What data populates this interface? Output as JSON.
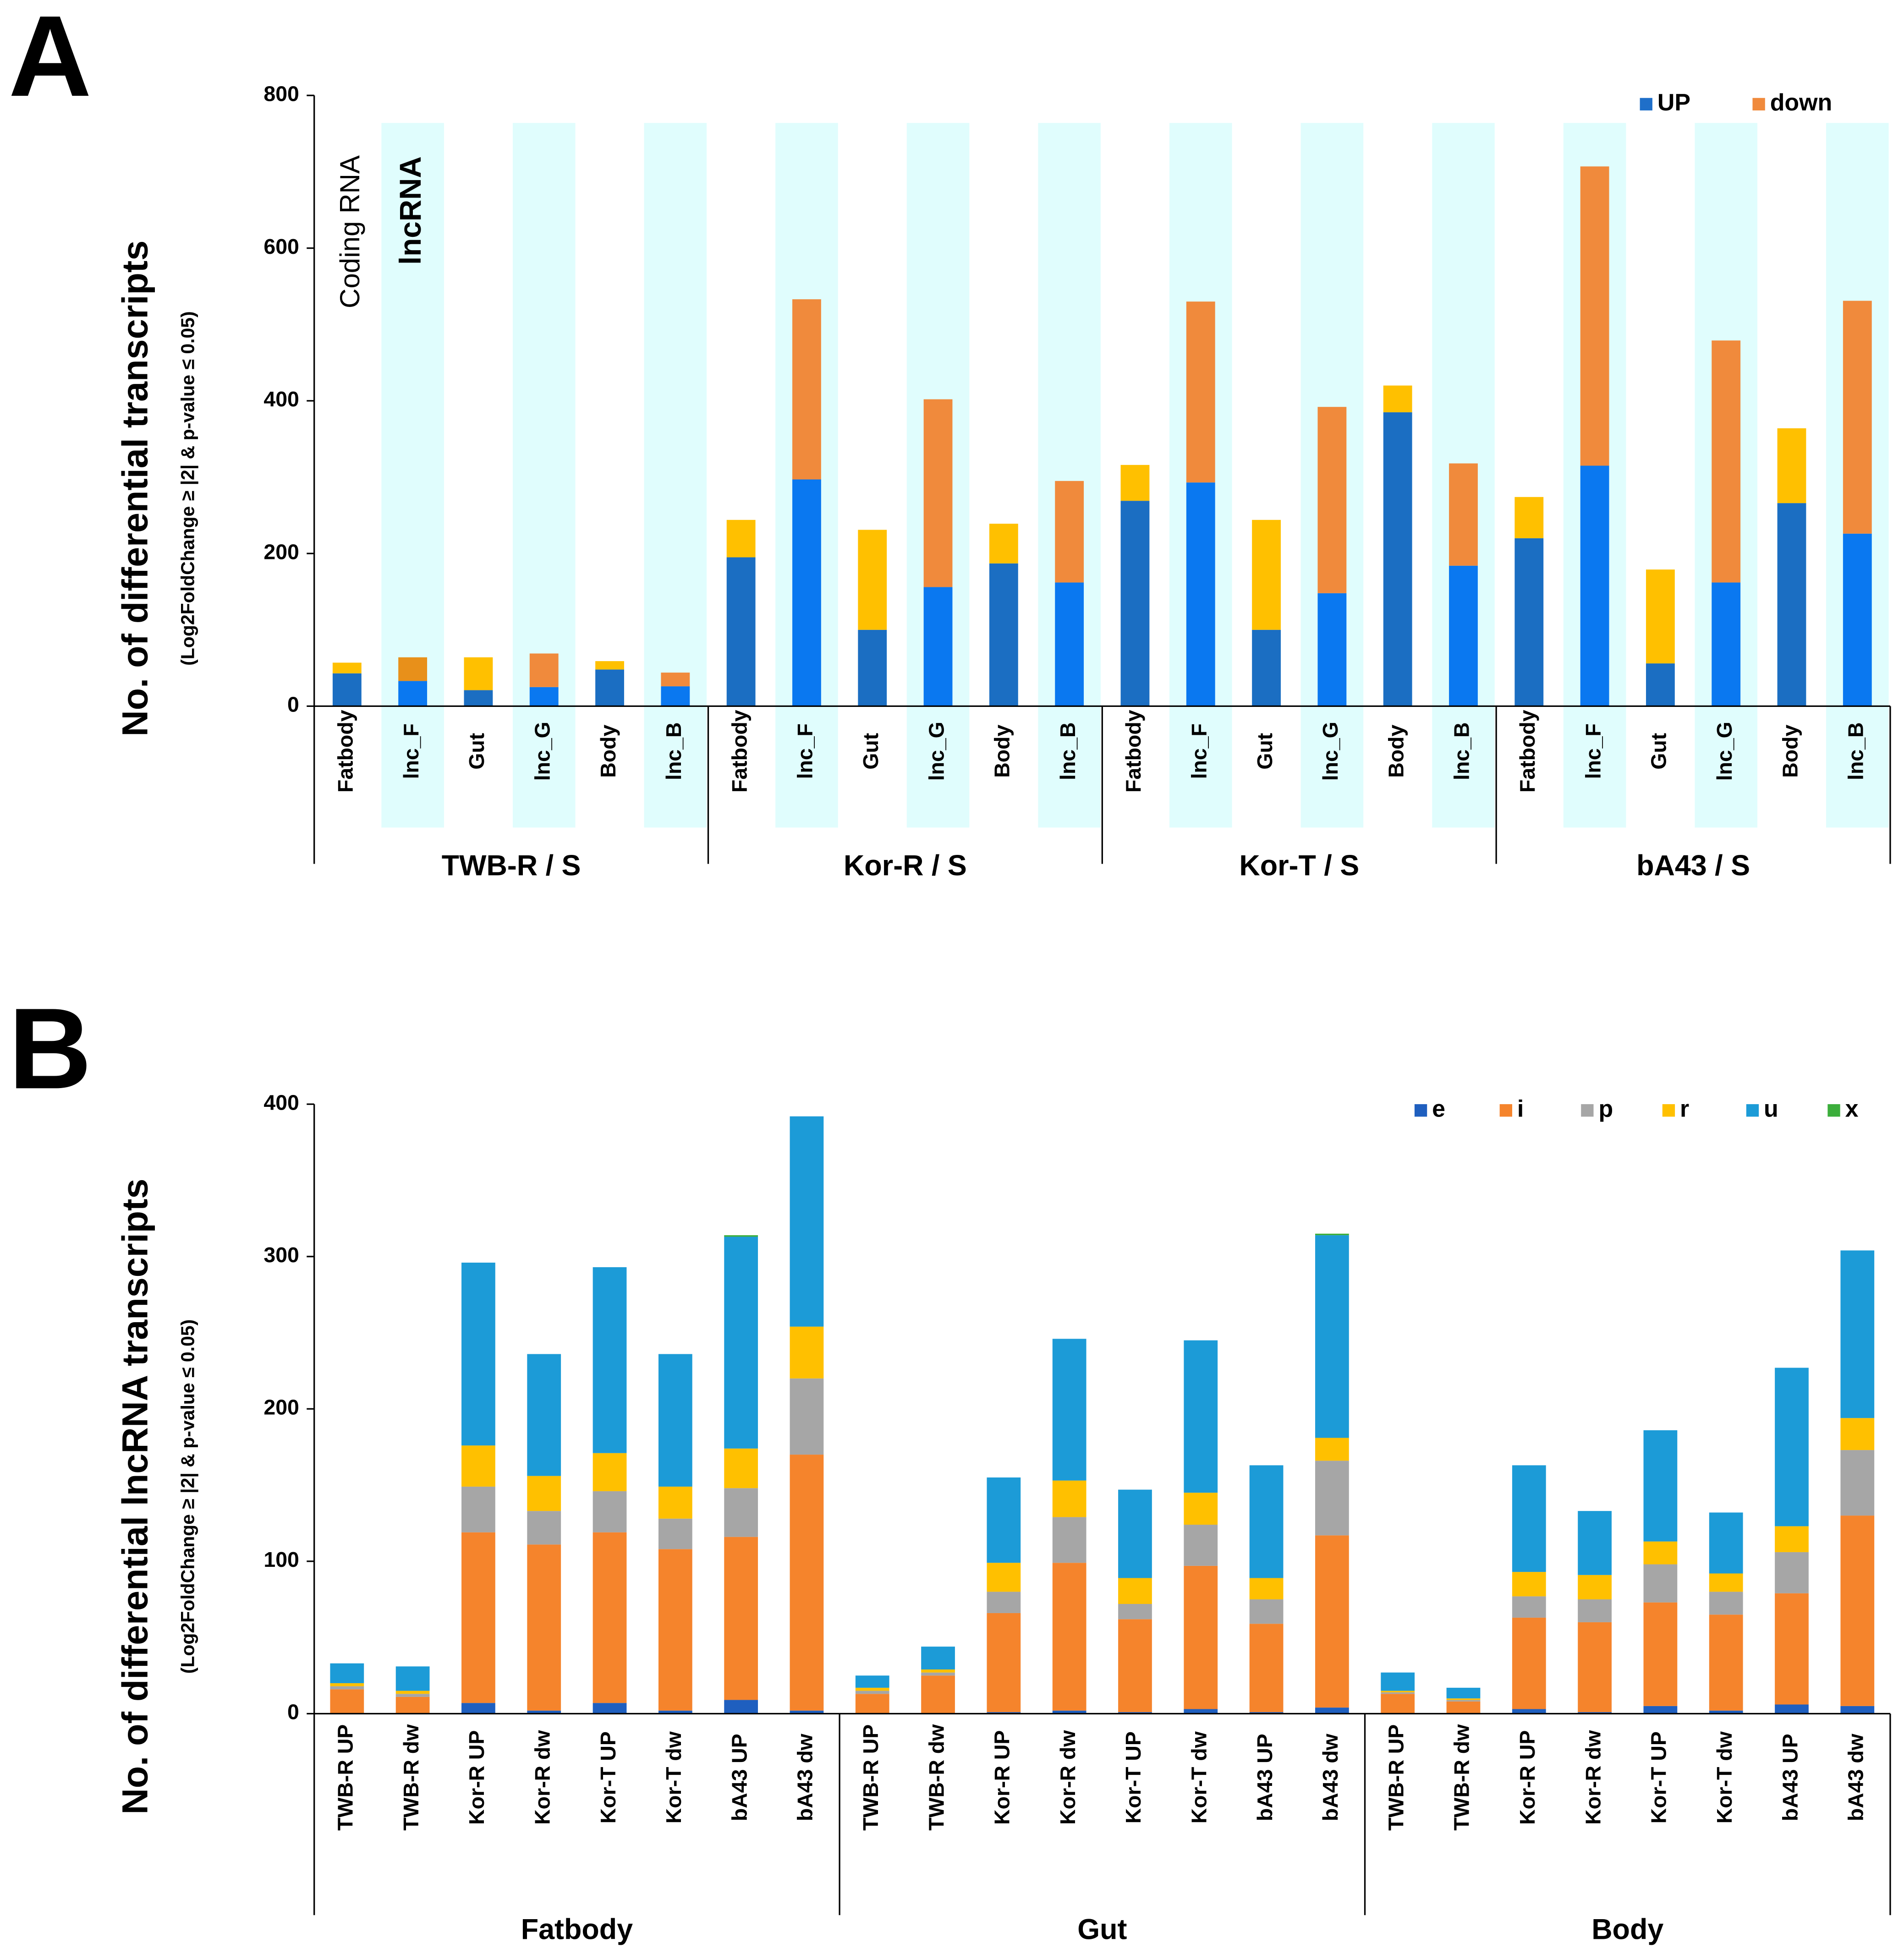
{
  "chart_data": [
    {
      "type": "bar",
      "stacked": true,
      "panel": "A",
      "y_label": "No. of differential transcripts",
      "y_sublabel": "(Log2FoldChange ≥ |2| & p-value ≤ 0.05)",
      "annotations": [
        "Coding RNA",
        "lncRNA"
      ],
      "categories": [
        "Fatbody",
        "lnc_F",
        "Gut",
        "lnc_G",
        "Body",
        "lnc_B",
        "Fatbody",
        "lnc_F",
        "Gut",
        "lnc_G",
        "Body",
        "lnc_B",
        "Fatbody",
        "lnc_F",
        "Gut",
        "lnc_G",
        "Body",
        "lnc_B",
        "Fatbody",
        "lnc_F",
        "Gut",
        "lnc_G",
        "Body",
        "lnc_B"
      ],
      "groups": [
        "TWB-R / S",
        "Kor-R / S",
        "Kor-T / S",
        "bA43 / S"
      ],
      "ylim": [
        0,
        800
      ],
      "yticks": [
        0,
        200,
        400,
        600,
        800
      ],
      "series": [
        {
          "name": "UP",
          "color": "#1f6fc9",
          "colors": [
            "#1b6ec2",
            "#0a78f0",
            "#1b6ec2",
            "#0a78f0",
            "#1b6ec2",
            "#0a78f0",
            "#1b6ec2",
            "#0a78f0",
            "#1b6ec2",
            "#0a78f0",
            "#1b6ec2",
            "#0a78f0",
            "#1b6ec2",
            "#0a78f0",
            "#1b6ec2",
            "#0a78f0",
            "#1b6ec2",
            "#0a78f0",
            "#1b6ec2",
            "#0a78f0",
            "#1b6ec2",
            "#0a78f0",
            "#1b6ec2",
            "#0a78f0"
          ],
          "values": [
            43,
            33,
            21,
            25,
            48,
            26,
            195,
            297,
            100,
            156,
            187,
            162,
            269,
            293,
            100,
            148,
            385,
            184,
            220,
            315,
            56,
            162,
            266,
            226
          ]
        },
        {
          "name": "down",
          "color": "#f08a3c",
          "colors": [
            "#ffc000",
            "#e8901a",
            "#ffc000",
            "#f08a3c",
            "#ffc000",
            "#f08a3c",
            "#ffc000",
            "#f08a3c",
            "#ffc000",
            "#f08a3c",
            "#ffc000",
            "#f08a3c",
            "#ffc000",
            "#f08a3c",
            "#ffc000",
            "#f08a3c",
            "#ffc000",
            "#f08a3c",
            "#ffc000",
            "#f08a3c",
            "#ffc000",
            "#f08a3c",
            "#ffc000",
            "#f08a3c"
          ],
          "values": [
            14,
            31,
            43,
            44,
            11,
            18,
            49,
            236,
            131,
            246,
            52,
            133,
            47,
            237,
            144,
            244,
            35,
            134,
            54,
            392,
            123,
            317,
            98,
            305
          ]
        }
      ]
    },
    {
      "type": "bar",
      "stacked": true,
      "panel": "B",
      "y_label": "No. of differential lncRNA transcripts",
      "y_sublabel": "(Log2FoldChange ≥ |2| & p-value ≤ 0.05)",
      "categories": [
        "TWB-R UP",
        "TWB-R dw",
        "Kor-R UP",
        "Kor-R dw",
        "Kor-T UP",
        "Kor-T dw",
        "bA43 UP",
        "bA43 dw",
        "TWB-R UP",
        "TWB-R dw",
        "Kor-R UP",
        "Kor-R dw",
        "Kor-T UP",
        "Kor-T dw",
        "bA43 UP",
        "bA43 dw",
        "TWB-R UP",
        "TWB-R dw",
        "Kor-R UP",
        "Kor-R dw",
        "Kor-T UP",
        "Kor-T dw",
        "bA43 UP",
        "bA43 dw"
      ],
      "groups": [
        "Fatbody",
        "Gut",
        "Body"
      ],
      "ylim": [
        0,
        400
      ],
      "yticks": [
        0,
        100,
        200,
        300,
        400
      ],
      "series": [
        {
          "name": "e",
          "color": "#1f5fbf",
          "values": [
            0,
            0,
            7,
            2,
            7,
            2,
            9,
            2,
            0,
            0,
            1,
            2,
            1,
            3,
            1,
            4,
            0,
            0,
            3,
            1,
            5,
            2,
            6,
            5
          ]
        },
        {
          "name": "i",
          "color": "#f5842c",
          "values": [
            16,
            11,
            112,
            109,
            112,
            106,
            107,
            168,
            13,
            25,
            65,
            97,
            61,
            94,
            58,
            113,
            13,
            8,
            60,
            59,
            68,
            63,
            73,
            125
          ]
        },
        {
          "name": "p",
          "color": "#a6a6a6",
          "values": [
            2,
            2,
            30,
            22,
            27,
            20,
            32,
            50,
            2,
            2,
            14,
            30,
            10,
            27,
            16,
            49,
            1,
            1,
            14,
            15,
            25,
            15,
            27,
            43
          ]
        },
        {
          "name": "r",
          "color": "#ffc000",
          "values": [
            2,
            2,
            27,
            23,
            25,
            21,
            26,
            34,
            2,
            2,
            19,
            24,
            17,
            21,
            14,
            15,
            1,
            1,
            16,
            16,
            15,
            12,
            17,
            21
          ]
        },
        {
          "name": "u",
          "color": "#1c9bd7",
          "values": [
            13,
            16,
            120,
            80,
            122,
            87,
            139,
            138,
            8,
            15,
            56,
            93,
            58,
            100,
            74,
            133,
            12,
            7,
            70,
            42,
            73,
            40,
            104,
            110
          ]
        },
        {
          "name": "x",
          "color": "#3cae3c",
          "values": [
            0,
            0,
            0,
            0,
            0,
            0,
            1,
            0,
            0,
            0,
            0,
            0,
            0,
            0,
            0,
            1,
            0,
            0,
            0,
            0,
            0,
            0,
            0,
            0
          ]
        }
      ]
    }
  ]
}
